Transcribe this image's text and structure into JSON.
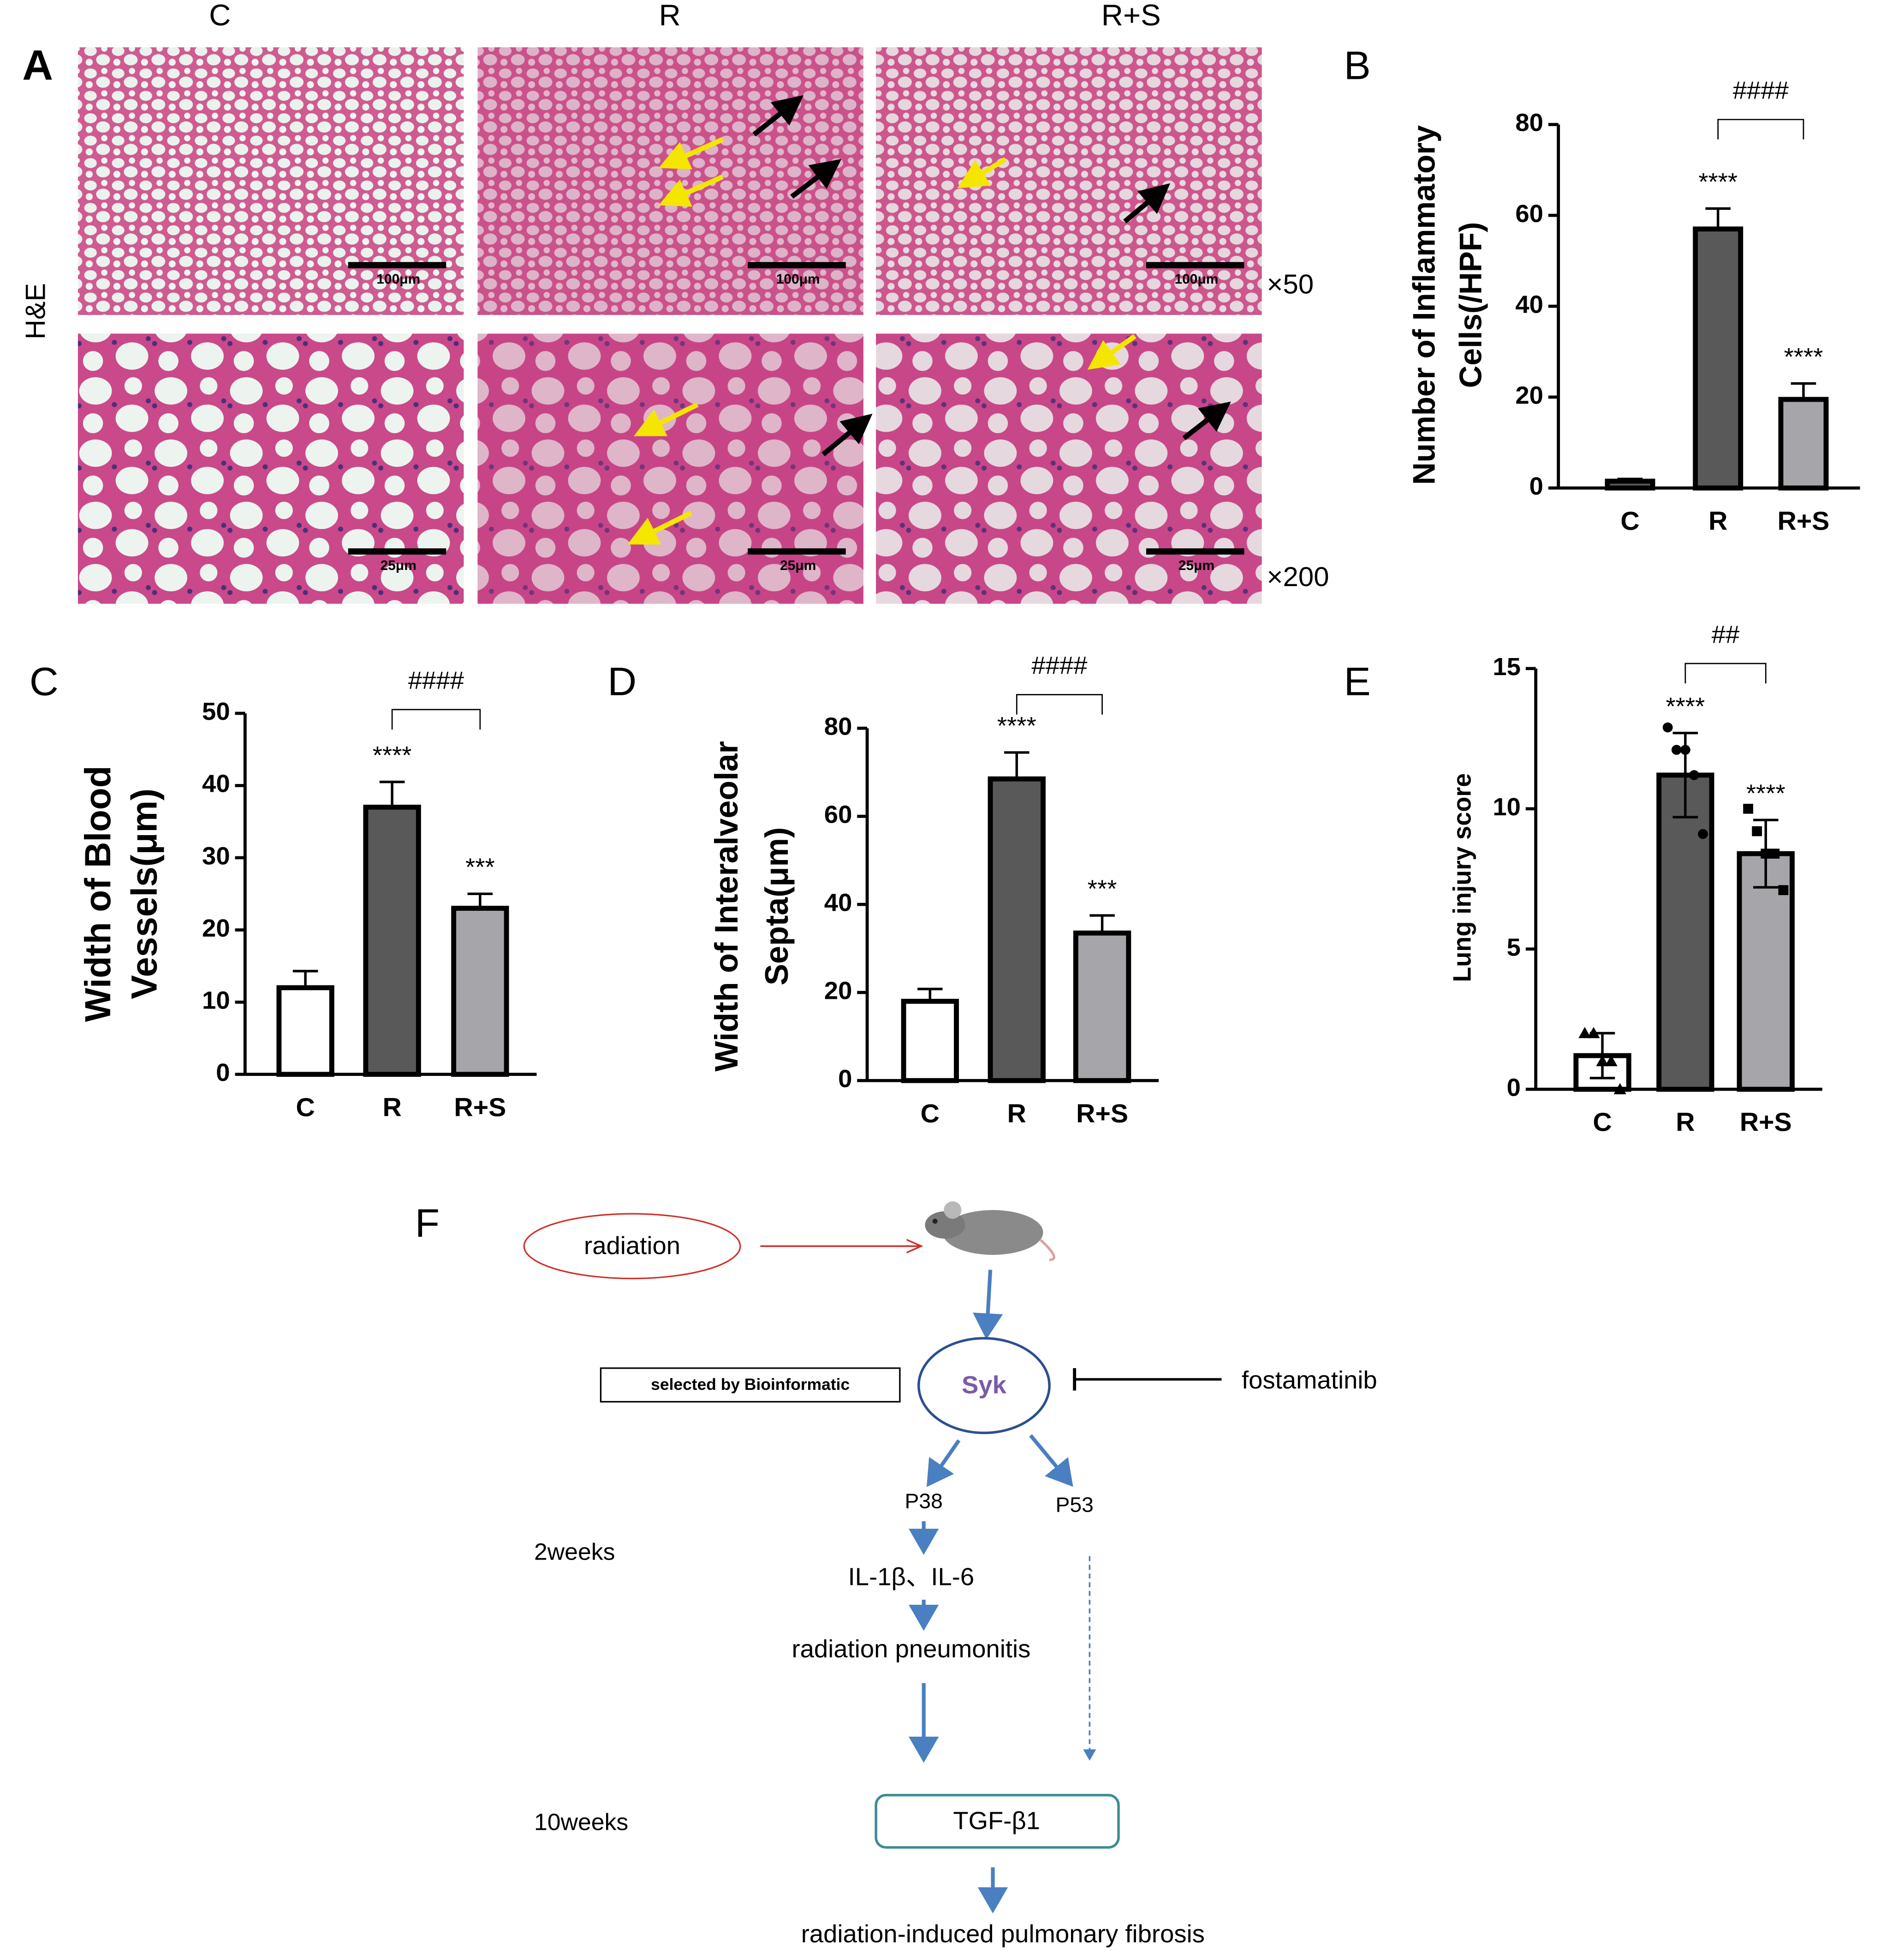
{
  "micrographs": {
    "label": "A",
    "columns": [
      "C",
      "R",
      "R+S"
    ],
    "stain": "H&E",
    "magnifications": [
      "×50",
      "×200"
    ],
    "scale_bars": [
      "100μm",
      "25μm"
    ]
  },
  "chart_data": [
    {
      "type": "bar",
      "label": "B",
      "categories": [
        "C",
        "R",
        "R+S"
      ],
      "values": [
        1.5,
        57,
        19.5
      ],
      "errors": [
        0.5,
        4.5,
        3.5
      ],
      "colors": [
        "#595959",
        "#595959",
        "#a6a6aa"
      ],
      "ylabel": [
        "Number of Inflammatory",
        "Cells(/HPF)"
      ],
      "ylim": [
        0,
        80
      ],
      "yticks": [
        0,
        20,
        40,
        60,
        80
      ],
      "significance": [
        null,
        "****",
        "****"
      ],
      "comparison": {
        "categories": [
          "R",
          "R+S"
        ],
        "label": "####"
      }
    },
    {
      "type": "bar",
      "label": "C",
      "categories": [
        "C",
        "R",
        "R+S"
      ],
      "values": [
        12,
        37,
        23
      ],
      "errors": [
        2.3,
        3.5,
        2
      ],
      "colors": [
        "#ffffff",
        "#595959",
        "#a6a6aa"
      ],
      "ylabel": [
        "Width of Blood",
        "Vessels(μm)"
      ],
      "ylim": [
        0,
        50
      ],
      "yticks": [
        0,
        10,
        20,
        30,
        40,
        50
      ],
      "significance": [
        null,
        "****",
        "***"
      ],
      "comparison": {
        "categories": [
          "R",
          "R+S"
        ],
        "label": "####"
      }
    },
    {
      "type": "bar",
      "label": "D",
      "categories": [
        "C",
        "R",
        "R+S"
      ],
      "values": [
        18,
        68.5,
        33.5
      ],
      "errors": [
        2.8,
        6,
        4
      ],
      "colors": [
        "#ffffff",
        "#595959",
        "#a6a6aa"
      ],
      "ylabel": [
        "Width of Interalveolar",
        "Septa(μm)"
      ],
      "ylim": [
        0,
        80
      ],
      "yticks": [
        0,
        20,
        40,
        60,
        80
      ],
      "significance": [
        null,
        "****",
        "***"
      ],
      "comparison": {
        "categories": [
          "R",
          "R+S"
        ],
        "label": "####"
      }
    },
    {
      "type": "bar",
      "label": "E",
      "categories": [
        "C",
        "R",
        "R+S"
      ],
      "values": [
        1.2,
        11.2,
        8.4
      ],
      "errors": [
        0.8,
        1.5,
        1.2
      ],
      "colors": [
        "#ffffff",
        "#595959",
        "#a6a6aa"
      ],
      "ylabel": [
        "Lung injury score"
      ],
      "ylim": [
        0,
        15
      ],
      "yticks": [
        0,
        5,
        10,
        15
      ],
      "points": [
        [
          2,
          2,
          1,
          1,
          0
        ],
        [
          12.9,
          12.1,
          12.1,
          11.2,
          9.1
        ],
        [
          10,
          9.2,
          8.4,
          8.4,
          7.1
        ]
      ],
      "significance": [
        null,
        "****",
        "****"
      ],
      "comparison": {
        "categories": [
          "R",
          "R+S"
        ],
        "label": "##"
      }
    }
  ],
  "diagram": {
    "label": "F",
    "input": "radiation",
    "hub": "Syk",
    "note": "selected by Bioinformatic",
    "inhibitor": "fostamatinib",
    "branches": [
      "P38",
      "P53"
    ],
    "early_time": "2weeks",
    "cytokines": "IL-1β、IL-6",
    "early_outcome": "radiation pneumonitis",
    "late_time": "10weeks",
    "mediator": "TGF-β1",
    "late_outcome": "radiation-induced pulmonary fibrosis"
  }
}
